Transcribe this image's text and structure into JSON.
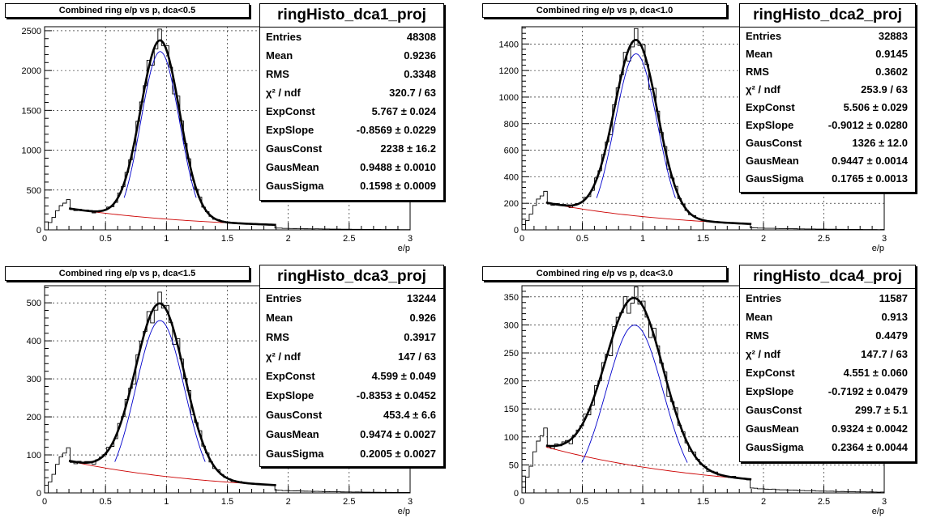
{
  "chart_data": [
    {
      "type": "histogram",
      "title": "Combined ring e/p vs p, dca<0.5",
      "xlabel": "e/p",
      "xlim": [
        0,
        3
      ],
      "ylim": [
        0,
        2550
      ],
      "xticks": [
        "0",
        "0.5",
        "1",
        "1.5",
        "2",
        "2.5",
        "3"
      ],
      "yticks": [
        0,
        500,
        1000,
        1500,
        2000,
        2500
      ],
      "grid": true,
      "fit_range": [
        0.2,
        1.9
      ],
      "stats": {
        "name": "ringHisto_dca1_proj",
        "rows": [
          {
            "label": "Entries",
            "value": "48308"
          },
          {
            "label": "Mean",
            "value": "0.9236"
          },
          {
            "label": "RMS",
            "value": "0.3348"
          },
          {
            "label": "χ² / ndf",
            "value": "320.7 / 63"
          },
          {
            "label": "ExpConst",
            "value": "5.767 ± 0.024"
          },
          {
            "label": "ExpSlope",
            "value": "-0.8569 ± 0.0229"
          },
          {
            "label": "GausConst",
            "value": "2238 ± 16.2"
          },
          {
            "label": "GausMean",
            "value": "0.9488 ± 0.0010"
          },
          {
            "label": "GausSigma",
            "value": "0.1598 ± 0.0009"
          }
        ]
      },
      "params": {
        "exp_const": 5.767,
        "exp_slope": -0.8569,
        "gaus_const": 2238,
        "gaus_mean": 0.9488,
        "gaus_sigma": 0.1598
      }
    },
    {
      "type": "histogram",
      "title": "Combined ring e/p vs p, dca<1.0",
      "xlabel": "e/p",
      "xlim": [
        0,
        3
      ],
      "ylim": [
        0,
        1530
      ],
      "xticks": [
        "0",
        "0.5",
        "1",
        "1.5",
        "2",
        "2.5",
        "3"
      ],
      "yticks": [
        0,
        200,
        400,
        600,
        800,
        1000,
        1200,
        1400
      ],
      "grid": true,
      "fit_range": [
        0.2,
        1.9
      ],
      "stats": {
        "name": "ringHisto_dca2_proj",
        "rows": [
          {
            "label": "Entries",
            "value": "32883"
          },
          {
            "label": "Mean",
            "value": "0.9145"
          },
          {
            "label": "RMS",
            "value": "0.3602"
          },
          {
            "label": "χ² / ndf",
            "value": "253.9 / 63"
          },
          {
            "label": "ExpConst",
            "value": "5.506 ± 0.029"
          },
          {
            "label": "ExpSlope",
            "value": "-0.9012 ± 0.0280"
          },
          {
            "label": "GausConst",
            "value": "1326 ± 12.0"
          },
          {
            "label": "GausMean",
            "value": "0.9447 ± 0.0014"
          },
          {
            "label": "GausSigma",
            "value": "0.1765 ± 0.0013"
          }
        ]
      },
      "params": {
        "exp_const": 5.506,
        "exp_slope": -0.9012,
        "gaus_const": 1326,
        "gaus_mean": 0.9447,
        "gaus_sigma": 0.1765
      }
    },
    {
      "type": "histogram",
      "title": "Combined ring e/p vs p, dca<1.5",
      "xlabel": "e/p",
      "xlim": [
        0,
        3
      ],
      "ylim": [
        0,
        545
      ],
      "xticks": [
        "0",
        "0.5",
        "1",
        "1.5",
        "2",
        "2.5",
        "3"
      ],
      "yticks": [
        0,
        100,
        200,
        300,
        400,
        500
      ],
      "grid": true,
      "fit_range": [
        0.2,
        1.9
      ],
      "stats": {
        "name": "ringHisto_dca3_proj",
        "rows": [
          {
            "label": "Entries",
            "value": "13244"
          },
          {
            "label": "Mean",
            "value": "0.926"
          },
          {
            "label": "RMS",
            "value": "0.3917"
          },
          {
            "label": "χ² / ndf",
            "value": "147 / 63"
          },
          {
            "label": "ExpConst",
            "value": "4.599 ± 0.049"
          },
          {
            "label": "ExpSlope",
            "value": "-0.8353 ± 0.0452"
          },
          {
            "label": "GausConst",
            "value": "453.4 ± 6.6"
          },
          {
            "label": "GausMean",
            "value": "0.9474 ± 0.0027"
          },
          {
            "label": "GausSigma",
            "value": "0.2005 ± 0.0027"
          }
        ]
      },
      "params": {
        "exp_const": 4.599,
        "exp_slope": -0.8353,
        "gaus_const": 453.4,
        "gaus_mean": 0.9474,
        "gaus_sigma": 0.2005
      }
    },
    {
      "type": "histogram",
      "title": "Combined ring e/p vs p, dca<3.0",
      "xlabel": "e/p",
      "xlim": [
        0,
        3
      ],
      "ylim": [
        0,
        370
      ],
      "xticks": [
        "0",
        "0.5",
        "1",
        "1.5",
        "2",
        "2.5",
        "3"
      ],
      "yticks": [
        0,
        50,
        100,
        150,
        200,
        250,
        300,
        350
      ],
      "grid": true,
      "fit_range": [
        0.2,
        1.9
      ],
      "stats": {
        "name": "ringHisto_dca4_proj",
        "rows": [
          {
            "label": "Entries",
            "value": "11587"
          },
          {
            "label": "Mean",
            "value": "0.913"
          },
          {
            "label": "RMS",
            "value": "0.4479"
          },
          {
            "label": "χ² / ndf",
            "value": "147.7 / 63"
          },
          {
            "label": "ExpConst",
            "value": "4.551 ± 0.060"
          },
          {
            "label": "ExpSlope",
            "value": "-0.7192 ± 0.0479"
          },
          {
            "label": "GausConst",
            "value": "299.7 ± 5.1"
          },
          {
            "label": "GausMean",
            "value": "0.9324 ± 0.0042"
          },
          {
            "label": "GausSigma",
            "value": "0.2364 ± 0.0044"
          }
        ]
      },
      "params": {
        "exp_const": 4.551,
        "exp_slope": -0.7192,
        "gaus_const": 299.7,
        "gaus_mean": 0.9324,
        "gaus_sigma": 0.2364
      }
    }
  ],
  "colors": {
    "histogram": "#000000",
    "total_fit": "#000000",
    "exp_background": "#cc0000",
    "gaus_component": "#0000cc",
    "grid": "#000000"
  }
}
